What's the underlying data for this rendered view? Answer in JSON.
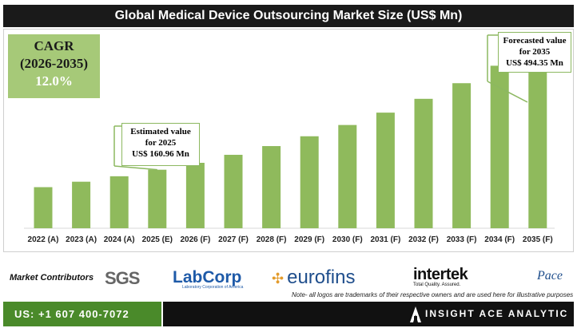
{
  "chart_data": {
    "type": "bar",
    "title": "Global Medical Device Outsourcing Market Size (US$ Mn)",
    "categories": [
      "2022 (A)",
      "2023 (A)",
      "2024 (A)",
      "2025 (E)",
      "2026 (F)",
      "2027 (F)",
      "2028 (F)",
      "2029 (F)",
      "2030 (F)",
      "2031 (F)",
      "2032 (F)",
      "2033 (F)",
      "2034 (F)",
      "2035 (F)"
    ],
    "values": [
      113,
      128,
      143,
      160.96,
      180,
      202,
      226,
      253,
      284,
      318,
      356,
      399,
      447,
      494.35
    ],
    "ylim": [
      0,
      540
    ],
    "bar_color": "#8fba5c",
    "callouts": [
      {
        "index": 3,
        "lines": [
          "Estimated value",
          "for 2025",
          "US$ 160.96 Mn"
        ]
      },
      {
        "index": 13,
        "lines": [
          "Forecasted value",
          "for 2035",
          "US$ 494.35 Mn"
        ]
      }
    ],
    "cagr": {
      "label": "CAGR",
      "period": "(2026-2035)",
      "value": "12.0%"
    }
  },
  "contributors": {
    "label": "Market Contributors",
    "logos": [
      "SGS",
      "LabCorp",
      "eurofins",
      "intertek",
      "Pace"
    ],
    "labcorp_tagline": "Laboratory Corporation of America",
    "intertek_tagline": "Total Quality. Assured."
  },
  "note": "Note- all logos are trademarks of their respective owners and are used here for illustrative purposes",
  "footer": {
    "phone": "US: +1 607 400-7072",
    "brand": "INSIGHT ACE ANALYTIC"
  },
  "colors": {
    "accent_green": "#4a8a2a",
    "bar_green": "#8fba5c",
    "cagr_bg": "#a6c978"
  }
}
